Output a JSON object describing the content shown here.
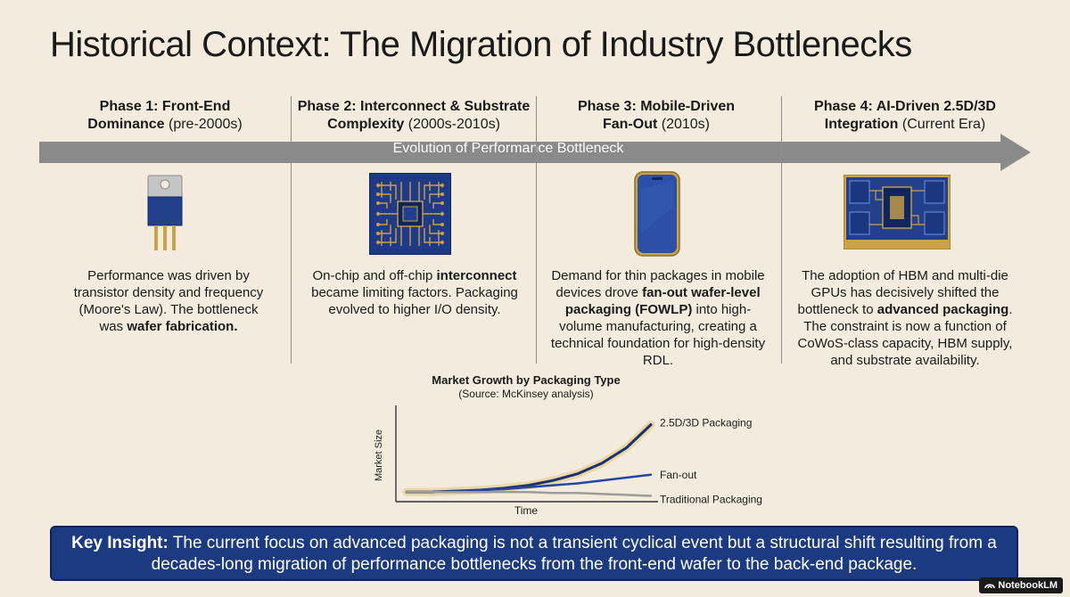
{
  "title": "Historical Context: The Migration of Industry Bottlenecks",
  "timeline_label": "Evolution of Performance Bottleneck",
  "phases": [
    {
      "head_bold": "Phase 1: Front-End Dominance",
      "head_rest": " (pre-2000s)",
      "icon": "transistor-icon",
      "text_parts": [
        "Performance was driven by transistor density and frequency (Moore's Law). The bottleneck was ",
        "wafer fabrication.",
        ""
      ]
    },
    {
      "head_bold": "Phase 2: Interconnect & Substrate Complexity",
      "head_rest": " (2000s-2010s)",
      "icon": "chip-icon",
      "text_parts": [
        "On-chip and off-chip ",
        "interconnect",
        " became limiting factors. Packaging evolved to higher I/O density."
      ]
    },
    {
      "head_bold": "Phase 3: Mobile-Driven Fan-Out",
      "head_rest": " (2010s)",
      "icon": "smartphone-icon",
      "text_parts": [
        "Demand for thin packages in mobile devices drove ",
        "fan-out wafer-level packaging (FOWLP)",
        " into high-volume manufacturing, creating a technical foundation for high-density RDL."
      ]
    },
    {
      "head_bold": "Phase 4: AI-Driven 2.5D/3D Integration",
      "head_rest": " (Current Era)",
      "icon": "multi-die-package-icon",
      "text_parts": [
        "The adoption of HBM and multi-die GPUs has decisively shifted the bottleneck to ",
        "advanced packaging",
        ". The constraint is now a function of CoWoS-class capacity, HBM supply, and substrate availability."
      ]
    }
  ],
  "chart_data": {
    "type": "line",
    "title": "Market Growth by Packaging Type",
    "subtitle": "(Source: McKinsey analysis)",
    "xlabel": "Time",
    "ylabel": "Market Size",
    "x": [
      0,
      0.1,
      0.2,
      0.3,
      0.4,
      0.5,
      0.6,
      0.7,
      0.8,
      0.9,
      1.0
    ],
    "ylim": [
      0,
      1
    ],
    "series": [
      {
        "name": "2.5D/3D Packaging",
        "color": "#1c2f6e",
        "values": [
          0.1,
          0.1,
          0.11,
          0.12,
          0.14,
          0.17,
          0.22,
          0.29,
          0.4,
          0.56,
          0.8
        ]
      },
      {
        "name": "Fan-out",
        "color": "#2346a0",
        "values": [
          0.1,
          0.1,
          0.11,
          0.12,
          0.13,
          0.15,
          0.17,
          0.19,
          0.22,
          0.25,
          0.28
        ]
      },
      {
        "name": "Traditional Packaging",
        "color": "#9c9c9c",
        "values": [
          0.1,
          0.1,
          0.1,
          0.1,
          0.1,
          0.1,
          0.09,
          0.09,
          0.08,
          0.07,
          0.06
        ]
      }
    ]
  },
  "insight": {
    "label": "Key Insight:",
    "text": " The current focus on advanced packaging is not a transient cyclical event but a structural shift resulting from a decades-long migration of performance bottlenecks from the front-end wafer to the back-end package."
  },
  "badge": "NotebookLM",
  "colors": {
    "background": "#f3ecde",
    "navy": "#1c3a80",
    "arrow_gray": "#8a8a8a",
    "gold": "#c9a24a"
  }
}
